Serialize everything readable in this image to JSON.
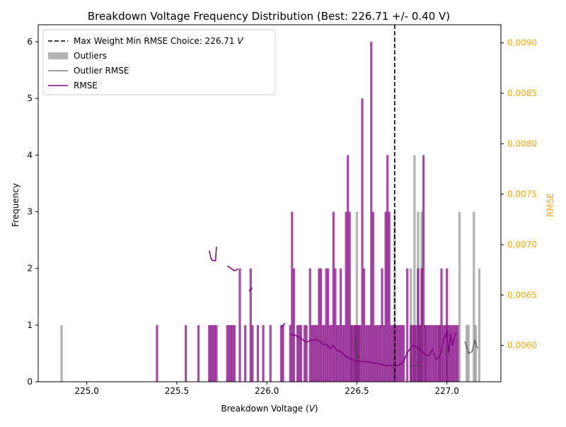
{
  "chart_data": {
    "type": "bar",
    "title": "Breakdown Voltage Frequency Distribution (Best: 226.71 +/- 0.40 V)",
    "xlabel_prefix": "Breakdown Voltage (",
    "xlabel_unit": "V",
    "xlabel_suffix": ")",
    "ylabel": "Frequency",
    "y2label": "RMSE",
    "xlim": [
      224.73,
      227.3
    ],
    "ylim": [
      0,
      6.3
    ],
    "y2lim": [
      0.00564,
      0.00918
    ],
    "xticks": [
      "225.0",
      "225.5",
      "226.0",
      "226.5",
      "227.0"
    ],
    "yticks": [
      "0",
      "1",
      "2",
      "3",
      "4",
      "5",
      "6"
    ],
    "y2ticks": [
      "0.0060",
      "0.0065",
      "0.0070",
      "0.0075",
      "0.0080",
      "0.0085",
      "0.0090"
    ],
    "grid": false,
    "legend_position": "top-left",
    "bin_width": 0.0128,
    "best_voltage": 226.71,
    "colors": {
      "main": "#800080",
      "outlier": "#808080",
      "vline": "#000000",
      "right_axis": "#FFA500"
    },
    "legend": [
      {
        "label_prefix": "Max Weight Min RMSE Choice: 226.71 ",
        "label_unit": "V",
        "style": "dashed"
      },
      {
        "label_prefix": "Outliers",
        "label_unit": "",
        "style": "patch"
      },
      {
        "label_prefix": "Outlier RMSE",
        "label_unit": "",
        "style": "gray-line"
      },
      {
        "label_prefix": "RMSE",
        "label_unit": "",
        "style": "purple-line"
      }
    ],
    "series": [
      {
        "kind": "histogram",
        "style": "main",
        "bins": [
          [
            225.39,
            1
          ],
          [
            225.55,
            1
          ],
          [
            225.62,
            1
          ],
          [
            225.68,
            1
          ],
          [
            225.69,
            1
          ],
          [
            225.7,
            1
          ],
          [
            225.71,
            1
          ],
          [
            225.72,
            1
          ],
          [
            225.78,
            1
          ],
          [
            225.79,
            1
          ],
          [
            225.8,
            1
          ],
          [
            225.81,
            1
          ],
          [
            225.82,
            1
          ],
          [
            225.85,
            2
          ],
          [
            225.88,
            1
          ],
          [
            225.91,
            2
          ],
          [
            225.92,
            1
          ],
          [
            225.95,
            1
          ],
          [
            225.98,
            1
          ],
          [
            226.02,
            1
          ],
          [
            226.08,
            1
          ],
          [
            226.09,
            1
          ],
          [
            226.13,
            1
          ],
          [
            226.14,
            3
          ],
          [
            226.15,
            2
          ],
          [
            226.17,
            1
          ],
          [
            226.18,
            1
          ],
          [
            226.19,
            1
          ],
          [
            226.21,
            1
          ],
          [
            226.22,
            1
          ],
          [
            226.24,
            2
          ],
          [
            226.25,
            1
          ],
          [
            226.26,
            1
          ],
          [
            226.27,
            1
          ],
          [
            226.28,
            1
          ],
          [
            226.29,
            2
          ],
          [
            226.3,
            2
          ],
          [
            226.31,
            1
          ],
          [
            226.32,
            1
          ],
          [
            226.33,
            2
          ],
          [
            226.34,
            2
          ],
          [
            226.35,
            1
          ],
          [
            226.36,
            1
          ],
          [
            226.37,
            3
          ],
          [
            226.38,
            2
          ],
          [
            226.39,
            1
          ],
          [
            226.4,
            1
          ],
          [
            226.41,
            2
          ],
          [
            226.42,
            1
          ],
          [
            226.43,
            1
          ],
          [
            226.44,
            3
          ],
          [
            226.45,
            4
          ],
          [
            226.46,
            3
          ],
          [
            226.47,
            1
          ],
          [
            226.48,
            1
          ],
          [
            226.49,
            1
          ],
          [
            226.5,
            1
          ],
          [
            226.51,
            1
          ],
          [
            226.52,
            1
          ],
          [
            226.53,
            5
          ],
          [
            226.54,
            2
          ],
          [
            226.55,
            1
          ],
          [
            226.56,
            1
          ],
          [
            226.57,
            1
          ],
          [
            226.58,
            6
          ],
          [
            226.59,
            3
          ],
          [
            226.6,
            1
          ],
          [
            226.61,
            1
          ],
          [
            226.62,
            1
          ],
          [
            226.63,
            1
          ],
          [
            226.64,
            2
          ],
          [
            226.65,
            1
          ],
          [
            226.66,
            3
          ],
          [
            226.67,
            4
          ],
          [
            226.68,
            3
          ],
          [
            226.69,
            1
          ],
          [
            226.7,
            1
          ],
          [
            226.71,
            1
          ],
          [
            226.72,
            1
          ],
          [
            226.73,
            1
          ],
          [
            226.74,
            1
          ],
          [
            226.75,
            1
          ],
          [
            226.76,
            1
          ],
          [
            226.78,
            2
          ],
          [
            226.8,
            1
          ],
          [
            226.81,
            1
          ],
          [
            226.82,
            1
          ],
          [
            226.83,
            1
          ],
          [
            226.84,
            2
          ],
          [
            226.85,
            1
          ],
          [
            226.86,
            2
          ],
          [
            226.87,
            4
          ],
          [
            226.88,
            1
          ],
          [
            226.89,
            1
          ],
          [
            226.9,
            1
          ],
          [
            226.91,
            1
          ],
          [
            226.92,
            1
          ],
          [
            226.93,
            1
          ],
          [
            226.94,
            1
          ],
          [
            226.95,
            1
          ],
          [
            226.96,
            1
          ],
          [
            226.97,
            2
          ],
          [
            226.98,
            1
          ],
          [
            226.99,
            1
          ],
          [
            227.0,
            2
          ],
          [
            227.01,
            1
          ],
          [
            227.02,
            1
          ],
          [
            227.03,
            1
          ],
          [
            227.04,
            1
          ],
          [
            227.05,
            1
          ],
          [
            227.06,
            1
          ]
        ]
      },
      {
        "kind": "histogram",
        "style": "outlier",
        "name": "Outliers",
        "bins": [
          [
            224.86,
            1
          ],
          [
            226.47,
            1
          ],
          [
            226.49,
            1
          ],
          [
            226.5,
            3
          ],
          [
            226.51,
            1
          ],
          [
            226.71,
            3
          ],
          [
            226.8,
            2
          ],
          [
            226.82,
            4
          ],
          [
            226.84,
            3
          ],
          [
            226.85,
            1
          ],
          [
            226.86,
            3
          ],
          [
            226.88,
            1
          ],
          [
            226.96,
            1
          ],
          [
            227.0,
            1
          ],
          [
            227.07,
            3
          ],
          [
            227.11,
            1
          ],
          [
            227.12,
            1
          ],
          [
            227.15,
            3
          ],
          [
            227.16,
            1
          ],
          [
            227.18,
            2
          ]
        ]
      },
      {
        "kind": "line",
        "style": "main",
        "name": "RMSE",
        "segments": [
          [
            [
              225.68,
              0.00694
            ],
            [
              225.69,
              0.00686
            ],
            [
              225.7,
              0.00684
            ],
            [
              225.715,
              0.00684
            ],
            [
              225.72,
              0.00698
            ]
          ],
          [
            [
              225.78,
              0.00679
            ],
            [
              225.82,
              0.00674
            ],
            [
              225.84,
              0.00676
            ]
          ],
          [
            [
              225.9,
              0.00654
            ],
            [
              225.92,
              0.00657
            ]
          ],
          [
            [
              226.08,
              0.00618
            ],
            [
              226.1,
              0.00622
            ]
          ],
          [
            [
              226.13,
              0.00611
            ],
            [
              226.16,
              0.0061
            ],
            [
              226.19,
              0.00607
            ],
            [
              226.22,
              0.00603
            ],
            [
              226.24,
              0.00605
            ],
            [
              226.26,
              0.00605
            ],
            [
              226.28,
              0.00606
            ],
            [
              226.3,
              0.00603
            ],
            [
              226.31,
              0.00601
            ],
            [
              226.33,
              0.00601
            ],
            [
              226.35,
              0.00597
            ],
            [
              226.37,
              0.006
            ],
            [
              226.39,
              0.00595
            ],
            [
              226.41,
              0.00594
            ],
            [
              226.44,
              0.00589
            ],
            [
              226.47,
              0.00586
            ],
            [
              226.52,
              0.00584
            ],
            [
              226.55,
              0.00584
            ],
            [
              226.58,
              0.00583
            ],
            [
              226.61,
              0.00582
            ],
            [
              226.64,
              0.00581
            ],
            [
              226.67,
              0.0058
            ],
            [
              226.7,
              0.0058
            ],
            [
              226.73,
              0.0058
            ],
            [
              226.76,
              0.00584
            ],
            [
              226.78,
              0.00593
            ],
            [
              226.81,
              0.006
            ],
            [
              226.84,
              0.00598
            ],
            [
              226.86,
              0.00594
            ],
            [
              226.88,
              0.00591
            ],
            [
              226.9,
              0.0059
            ],
            [
              226.92,
              0.00596
            ],
            [
              226.94,
              0.00586
            ],
            [
              226.96,
              0.00589
            ],
            [
              226.97,
              0.00594
            ],
            [
              226.98,
              0.00605
            ],
            [
              227.0,
              0.00614
            ],
            [
              227.01,
              0.00593
            ],
            [
              227.02,
              0.00611
            ],
            [
              227.03,
              0.006
            ],
            [
              227.04,
              0.00607
            ],
            [
              227.05,
              0.00612
            ]
          ]
        ]
      },
      {
        "kind": "line",
        "style": "outlier",
        "name": "Outlier RMSE",
        "segments": [
          [
            [
              226.49,
              0.00608
            ],
            [
              226.5,
              0.00586
            ],
            [
              226.51,
              0.0059
            ]
          ],
          [
            [
              226.8,
              0.0058
            ],
            [
              226.83,
              0.0058
            ],
            [
              226.86,
              0.0058
            ]
          ],
          [
            [
              226.99,
              0.00592
            ],
            [
              227.0,
              0.00595
            ],
            [
              227.01,
              0.00592
            ]
          ],
          [
            [
              227.1,
              0.00604
            ],
            [
              227.12,
              0.00592
            ],
            [
              227.14,
              0.00594
            ],
            [
              227.155,
              0.00605
            ],
            [
              227.17,
              0.00597
            ]
          ]
        ]
      }
    ]
  }
}
